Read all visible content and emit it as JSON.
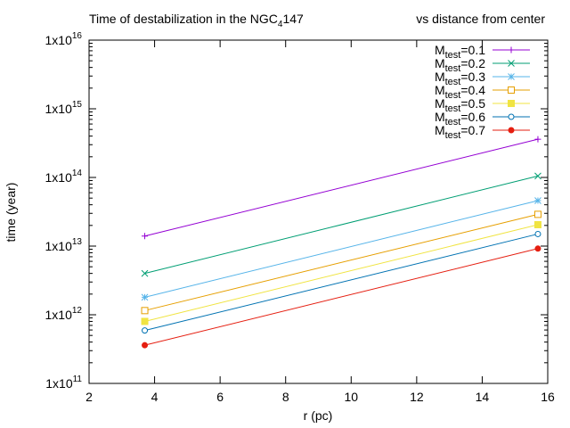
{
  "chart_data": {
    "type": "line",
    "title": "Time of destabilization in the NGC",
    "title_subscript": "4",
    "title_suffix": "147",
    "subtitle": "vs distance from center",
    "xlabel": "r (pc)",
    "ylabel": "time (year)",
    "xlim": [
      2,
      16
    ],
    "ylim": [
      100000000000,
      10000000000000000
    ],
    "y_scale": "log",
    "x_ticks": [
      "2",
      "4",
      "6",
      "8",
      "10",
      "12",
      "14",
      "16"
    ],
    "y_ticks": [
      {
        "base": "1x10",
        "exp": "11"
      },
      {
        "base": "1x10",
        "exp": "12"
      },
      {
        "base": "1x10",
        "exp": "13"
      },
      {
        "base": "1x10",
        "exp": "14"
      },
      {
        "base": "1x10",
        "exp": "15"
      },
      {
        "base": "1x10",
        "exp": "16"
      }
    ],
    "grid": false,
    "legend_position": "top-right",
    "x": [
      3.7,
      15.7
    ],
    "series": [
      {
        "name_main": "M",
        "name_sub": "test",
        "name_suffix": "=0.1",
        "values": [
          14000000000000,
          360000000000000
        ],
        "color": "#9400d3",
        "marker": "plus"
      },
      {
        "name_main": "M",
        "name_sub": "test",
        "name_suffix": "=0.2",
        "values": [
          4000000000000,
          105000000000000
        ],
        "color": "#009e73",
        "marker": "cross"
      },
      {
        "name_main": "M",
        "name_sub": "test",
        "name_suffix": "=0.3",
        "values": [
          1800000000000,
          46000000000000
        ],
        "color": "#56b4e9",
        "marker": "star"
      },
      {
        "name_main": "M",
        "name_sub": "test",
        "name_suffix": "=0.4",
        "values": [
          1150000000000,
          29000000000000
        ],
        "color": "#e69f00",
        "marker": "open-square"
      },
      {
        "name_main": "M",
        "name_sub": "test",
        "name_suffix": "=0.5",
        "values": [
          800000000000,
          20500000000000
        ],
        "color": "#f0e442",
        "marker": "filled-square"
      },
      {
        "name_main": "M",
        "name_sub": "test",
        "name_suffix": "=0.6",
        "values": [
          590000000000,
          15000000000000
        ],
        "color": "#0072b2",
        "marker": "open-circle"
      },
      {
        "name_main": "M",
        "name_sub": "test",
        "name_suffix": "=0.7",
        "values": [
          360000000000,
          9200000000000
        ],
        "color": "#e51e10",
        "marker": "filled-circle"
      }
    ]
  }
}
